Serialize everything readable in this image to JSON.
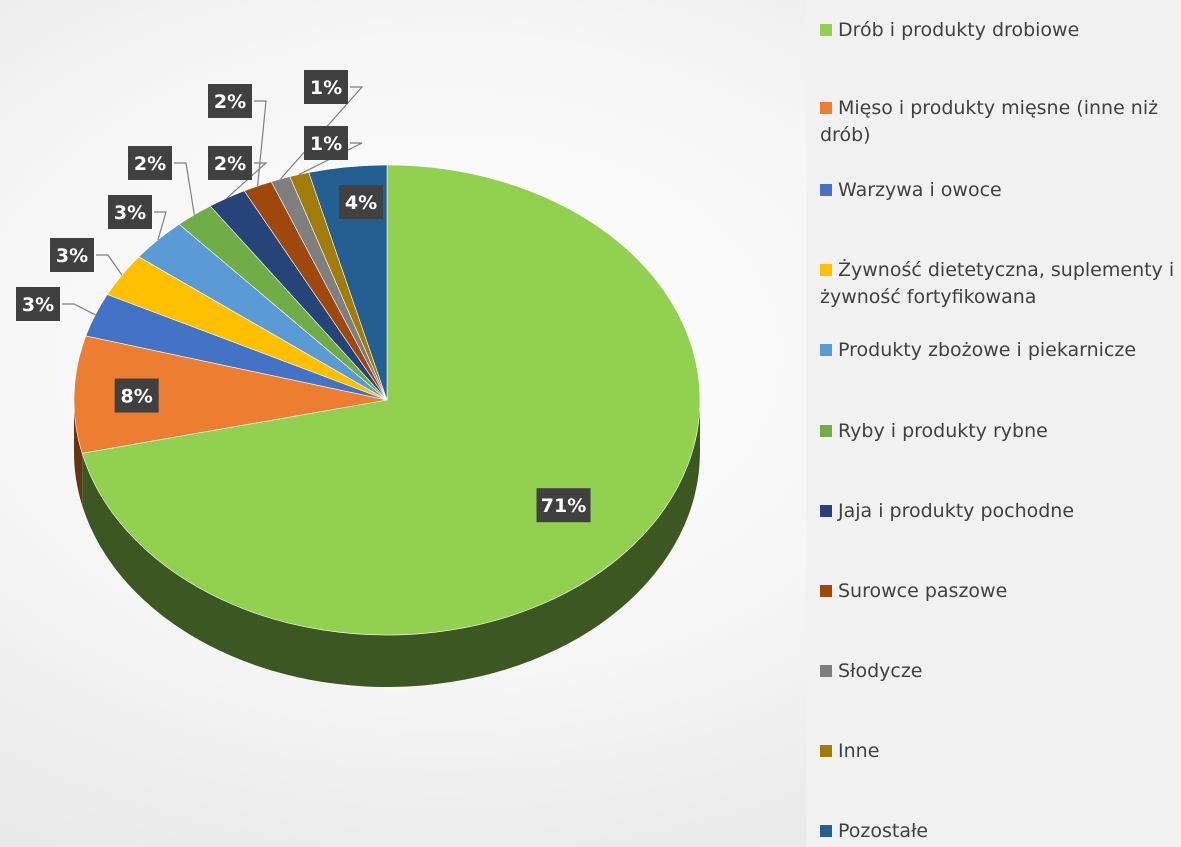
{
  "chart_data": {
    "type": "pie",
    "title": "",
    "legend_position": "right",
    "categories": [
      "Drób i produkty drobiowe",
      "Mięso i produkty mięsne (inne niż drób)",
      "Warzywa i owoce",
      "Żywność dietetyczna, suplementy i żywność fortyfikowana",
      "Produkty zbożowe i piekarnicze",
      "Ryby i produkty rybne",
      "Jaja i produkty pochodne",
      "Surowce paszowe",
      "Słodycze",
      "Inne",
      "Pozostałe"
    ],
    "values": [
      71,
      8,
      3,
      3,
      3,
      2,
      2,
      1.5,
      1,
      1,
      4
    ],
    "labels": [
      "71%",
      "8%",
      "3%",
      "3%",
      "3%",
      "2%",
      "2%",
      "2%",
      "1%",
      "1%",
      "4%"
    ],
    "colors": [
      "#92d050",
      "#ed7d31",
      "#4472c4",
      "#ffc000",
      "#5b9bd5",
      "#70ad47",
      "#264478",
      "#9e480e",
      "#7f7f7f",
      "#a27c0a",
      "#255e91"
    ]
  }
}
